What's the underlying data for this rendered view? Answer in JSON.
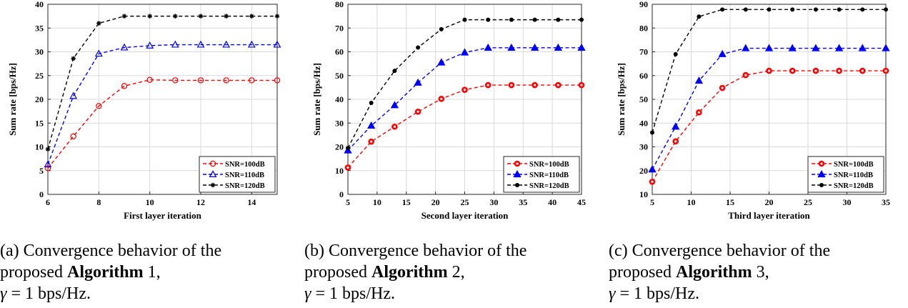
{
  "colors": {
    "series": [
      "#ff0000",
      "#0000ff",
      "#000000"
    ]
  },
  "chart_data": [
    {
      "type": "line",
      "xlabel": "First layer iteration",
      "ylabel": "Sum rate [bps/Hz]",
      "xlim": [
        6,
        15
      ],
      "ylim": [
        0,
        40
      ],
      "xticks": [
        6,
        8,
        10,
        12,
        14
      ],
      "yticks": [
        0,
        5,
        10,
        15,
        20,
        25,
        30,
        35,
        40
      ],
      "grid": true,
      "legend_position": "bottom-right",
      "x": [
        6,
        7,
        8,
        9,
        10,
        11,
        12,
        13,
        14,
        15
      ],
      "series": [
        {
          "name": "SNR=100dB",
          "marker": "circle-open",
          "values": [
            5.5,
            12.2,
            18.6,
            22.8,
            24.1,
            24.0,
            24.0,
            24.0,
            24.0,
            24.0
          ]
        },
        {
          "name": "SNR=110dB",
          "marker": "triangle-open",
          "values": [
            6.3,
            20.7,
            29.6,
            30.9,
            31.3,
            31.5,
            31.5,
            31.5,
            31.5,
            31.5
          ]
        },
        {
          "name": "SNR=120dB",
          "marker": "star",
          "values": [
            9.5,
            28.6,
            36.0,
            37.5,
            37.5,
            37.5,
            37.5,
            37.5,
            37.5,
            37.5
          ]
        }
      ],
      "caption": {
        "pre": "(a) Convergence behavior of the",
        "line2_pre": "proposed ",
        "alg": "Algorithm",
        "alg_num": " 1,",
        "gamma": "γ",
        "gamma_rest": " = 1 bps/Hz."
      }
    },
    {
      "type": "line",
      "xlabel": "Second layer iteration",
      "ylabel": "Sum rate [bps/Hz]",
      "xlim": [
        5,
        45
      ],
      "ylim": [
        0,
        80
      ],
      "xticks": [
        5,
        10,
        15,
        20,
        25,
        30,
        35,
        40,
        45
      ],
      "yticks": [
        0,
        10,
        20,
        30,
        40,
        50,
        60,
        70,
        80
      ],
      "grid": true,
      "legend_position": "bottom-right",
      "x": [
        5,
        9,
        13,
        17,
        21,
        25,
        29,
        33,
        37,
        41,
        45
      ],
      "series": [
        {
          "name": "SNR=100dB",
          "marker": "circle-filled",
          "values": [
            11.3,
            22.2,
            28.5,
            34.8,
            40.2,
            44.0,
            46.0,
            46.0,
            46.0,
            46.0,
            46.0
          ]
        },
        {
          "name": "SNR=110dB",
          "marker": "triangle-filled",
          "values": [
            18.5,
            28.9,
            37.5,
            47.0,
            55.5,
            59.7,
            61.7,
            61.7,
            61.7,
            61.7,
            61.7
          ]
        },
        {
          "name": "SNR=120dB",
          "marker": "dot",
          "values": [
            19.5,
            38.5,
            52.0,
            61.8,
            69.5,
            73.5,
            73.5,
            73.5,
            73.5,
            73.5,
            73.5
          ]
        }
      ],
      "caption": {
        "pre": "(b) Convergence behavior of the",
        "line2_pre": "proposed ",
        "alg": "Algorithm",
        "alg_num": " 2,",
        "gamma": "γ",
        "gamma_rest": " = 1 bps/Hz."
      }
    },
    {
      "type": "line",
      "xlabel": "Third layer iteration",
      "ylabel": "Sum rate [bps/Hz]",
      "xlim": [
        5,
        35
      ],
      "ylim": [
        10,
        90
      ],
      "xticks": [
        5,
        10,
        15,
        20,
        25,
        30,
        35
      ],
      "yticks": [
        10,
        20,
        30,
        40,
        50,
        60,
        70,
        80,
        90
      ],
      "grid": true,
      "legend_position": "bottom-right",
      "x": [
        5,
        8,
        11,
        14,
        17,
        20,
        23,
        26,
        29,
        32,
        35
      ],
      "series": [
        {
          "name": "SNR=100dB",
          "marker": "circle-filled",
          "values": [
            15.3,
            32.3,
            44.5,
            54.8,
            60.2,
            62.0,
            62.0,
            62.0,
            62.0,
            62.0,
            62.0
          ]
        },
        {
          "name": "SNR=110dB",
          "marker": "triangle-filled",
          "values": [
            20.5,
            38.5,
            57.8,
            69.0,
            71.5,
            71.5,
            71.5,
            71.5,
            71.5,
            71.5,
            71.5
          ]
        },
        {
          "name": "SNR=120dB",
          "marker": "dot",
          "values": [
            36.0,
            69.0,
            84.8,
            87.8,
            87.8,
            87.8,
            87.8,
            87.8,
            87.8,
            87.8,
            87.8
          ]
        }
      ],
      "caption": {
        "pre": "(c) Convergence behavior of the",
        "line2_pre": "proposed ",
        "alg": "Algorithm",
        "alg_num": " 3,",
        "gamma": "γ",
        "gamma_rest": " = 1 bps/Hz."
      }
    }
  ]
}
